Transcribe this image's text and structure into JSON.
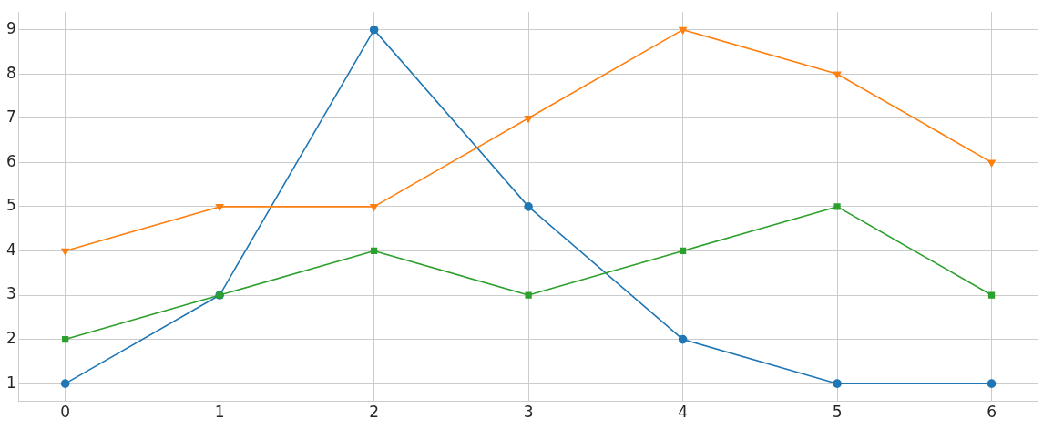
{
  "chart_data": {
    "type": "line",
    "x": [
      0,
      1,
      2,
      3,
      4,
      5,
      6
    ],
    "series": [
      {
        "color": "#1f77b4",
        "marker": "circle",
        "values": [
          1,
          3,
          9,
          5,
          2,
          1,
          1
        ]
      },
      {
        "color": "#ff7f0e",
        "marker": "triangle",
        "values": [
          4,
          5,
          5,
          7,
          9,
          8,
          6
        ]
      },
      {
        "color": "#2ca02c",
        "marker": "square",
        "values": [
          2,
          3,
          4,
          3,
          4,
          5,
          3
        ]
      }
    ],
    "xlim": [
      -0.3,
      6.3
    ],
    "xticks": [
      0,
      1,
      2,
      3,
      4,
      5,
      6
    ],
    "ylim": [
      0.6,
      9.4
    ],
    "yticks": [
      1,
      2,
      3,
      4,
      5,
      6,
      7,
      8,
      9
    ],
    "grid": true,
    "legend": false,
    "line_style": "solid"
  }
}
